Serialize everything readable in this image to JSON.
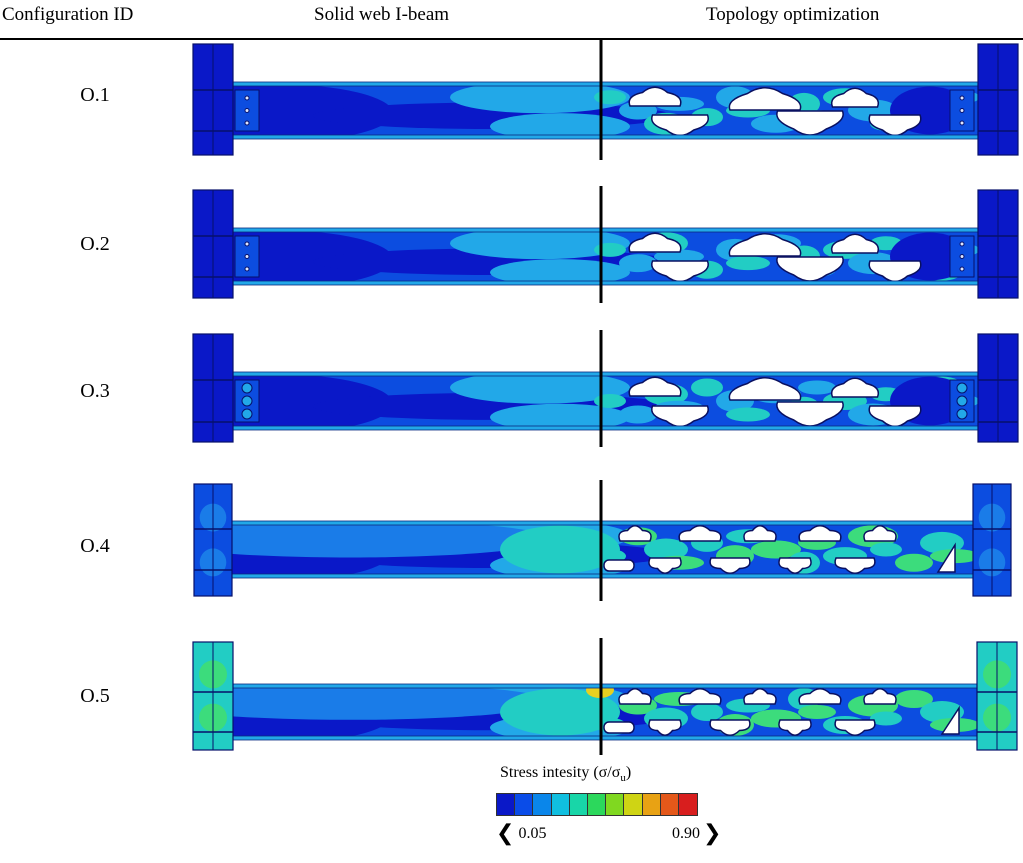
{
  "headers": {
    "col1": "Configuration ID",
    "col2": "Solid web I-beam",
    "col3": "Topology optimization"
  },
  "configurations": [
    {
      "id": "O.1"
    },
    {
      "id": "O.2"
    },
    {
      "id": "O.3"
    },
    {
      "id": "O.4"
    },
    {
      "id": "O.5"
    }
  ],
  "legend": {
    "title_prefix": "Stress intesity (σ/σ",
    "title_sub": "u",
    "title_suffix": ")",
    "min_label": "0.05",
    "max_label": "0.90",
    "min_value": 0.05,
    "max_value": 0.9,
    "colors": [
      "#0a18c8",
      "#0a4ce8",
      "#0a86ea",
      "#10bfe0",
      "#18d6a8",
      "#2cd85c",
      "#80d820",
      "#cfd414",
      "#e8a214",
      "#e4581a",
      "#d81e1e"
    ]
  },
  "palette": {
    "dark_blue": "#0a18c8",
    "mid_blue": "#0c4de0",
    "cyan": "#22a8e8",
    "teal": "#22cdc4",
    "green": "#3cdc7c",
    "yellow": "#e8d020",
    "hole_fill": "#ffffff",
    "divider": "#000000"
  }
}
